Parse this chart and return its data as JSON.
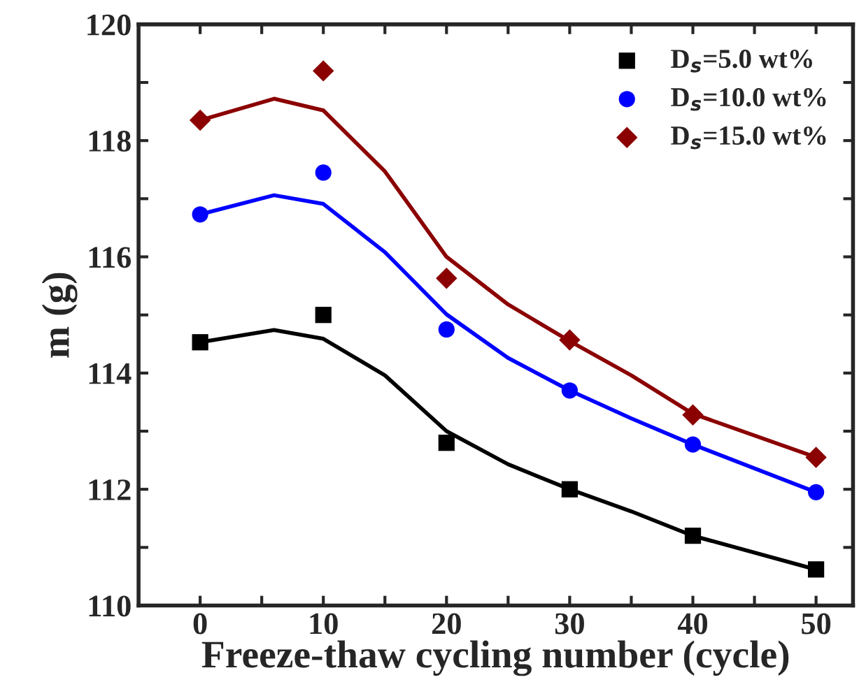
{
  "chart_data": {
    "type": "scatter",
    "xlabel": "Freeze-thaw cycling number (cycle)",
    "ylabel": "m (g)",
    "x": [
      0,
      10,
      20,
      30,
      40,
      50
    ],
    "series": [
      {
        "name": "D$_{s}$=5.0 wt%",
        "color": "#000000",
        "marker": "square",
        "values": [
          114.53,
          115.0,
          112.8,
          112.0,
          111.2,
          110.62
        ]
      },
      {
        "name": "D$_{s}$=10.0 wt%",
        "color": "#0000ff",
        "marker": "circle",
        "values": [
          116.73,
          117.45,
          114.75,
          113.7,
          112.77,
          111.95
        ]
      },
      {
        "name": "D$_{s}$=15.0 wt%",
        "color": "#8b0000",
        "marker": "diamond",
        "values": [
          118.35,
          119.2,
          115.63,
          114.57,
          113.28,
          112.55
        ]
      },
      {
        "type": "line",
        "color": "#000000",
        "x": [
          0,
          6,
          10,
          15,
          20,
          25,
          30,
          35,
          40,
          50
        ],
        "values": [
          114.53,
          114.74,
          114.59,
          113.96,
          113.0,
          112.43,
          112.0,
          111.62,
          111.2,
          110.62
        ]
      },
      {
        "type": "line",
        "color": "#0000ff",
        "x": [
          0,
          6,
          10,
          15,
          20,
          25,
          30,
          35,
          40,
          50
        ],
        "values": [
          116.73,
          117.06,
          116.91,
          116.08,
          115.01,
          114.26,
          113.7,
          113.22,
          112.77,
          111.95
        ]
      },
      {
        "type": "line",
        "color": "#8b0000",
        "x": [
          0,
          6,
          10,
          15,
          20,
          25,
          30,
          35,
          40,
          50
        ],
        "values": [
          118.35,
          118.72,
          118.52,
          117.47,
          116.0,
          115.18,
          114.55,
          113.96,
          113.3,
          112.55
        ]
      }
    ],
    "xlim": [
      -5,
      53
    ],
    "ylim": [
      110,
      120
    ],
    "xticks": [
      0,
      {
        "value": 5,
        "label": null
      },
      10,
      {
        "value": 15,
        "label": null
      },
      20,
      {
        "value": 25,
        "label": null
      },
      30,
      {
        "value": 35,
        "label": null
      },
      40,
      {
        "value": 45,
        "label": null
      },
      50
    ],
    "yticks": [
      110,
      {
        "value": 111,
        "label": null
      },
      112,
      {
        "value": 113,
        "label": null
      },
      114,
      {
        "value": 115,
        "label": null
      },
      116,
      {
        "value": 117,
        "label": null
      },
      118,
      {
        "value": 119,
        "label": null
      },
      120
    ],
    "legend": "top right",
    "grid": false
  }
}
